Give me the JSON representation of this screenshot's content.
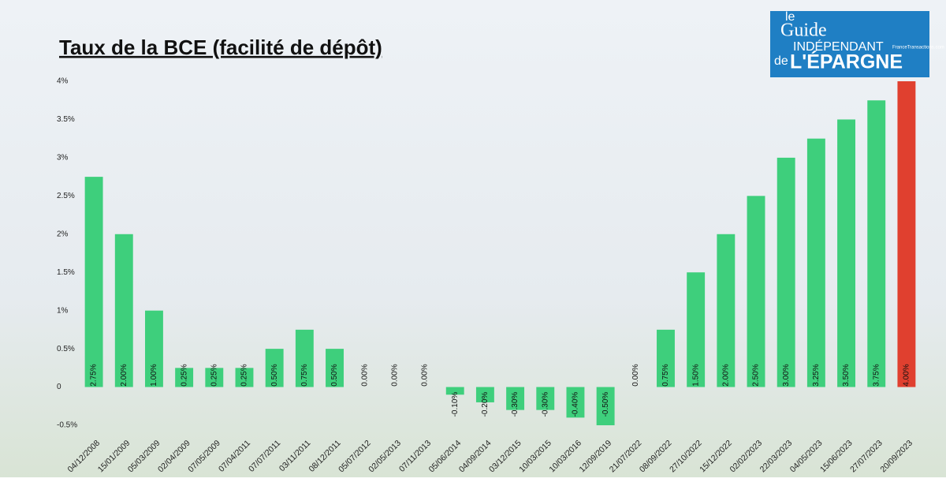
{
  "chart_data": {
    "type": "bar",
    "title": "Taux de la BCE (facilité de dépôt)",
    "categories": [
      "04/12/2008",
      "15/01/2009",
      "05/03/2009",
      "02/04/2009",
      "07/05/2009",
      "07/04/2011",
      "07/07/2011",
      "03/11/2011",
      "08/12/2011",
      "05/07/2012",
      "02/05/2013",
      "07/11/2013",
      "05/06/2014",
      "04/09/2014",
      "03/12/2015",
      "10/03/2015",
      "10/03/2016",
      "12/09/2019",
      "21/07/2022",
      "08/09/2022",
      "27/10/2022",
      "15/12/2022",
      "02/02/2023",
      "22/03/2023",
      "04/05/2023",
      "15/06/2023",
      "27/07/2023",
      "20/09/2023"
    ],
    "values": [
      2.75,
      2,
      1,
      0.25,
      0.25,
      0.25,
      0.5,
      0.75,
      0.5,
      0,
      0,
      0,
      -0.1,
      -0.2,
      -0.3,
      -0.3,
      -0.4,
      -0.5,
      0,
      0.75,
      1.5,
      2,
      2.5,
      3,
      3.25,
      3.5,
      3.75,
      4
    ],
    "value_labels": [
      "2.75%",
      "2.00%",
      "1.00%",
      "0.25%",
      "0.25%",
      "0.25%",
      "0.50%",
      "0.75%",
      "0.50%",
      "0.00%",
      "0.00%",
      "0.00%",
      "-0.10%",
      "-0.20%",
      "-0.30%",
      "-0.30%",
      "-0.40%",
      "-0.50%",
      "0.00%",
      "0.75%",
      "1.50%",
      "2.00%",
      "2.50%",
      "3.00%",
      "3.25%",
      "3.50%",
      "3.75%",
      "4.00%"
    ],
    "colors": [
      "#3ecf7c",
      "#3ecf7c",
      "#3ecf7c",
      "#3ecf7c",
      "#3ecf7c",
      "#3ecf7c",
      "#3ecf7c",
      "#3ecf7c",
      "#3ecf7c",
      "#3ecf7c",
      "#3ecf7c",
      "#3ecf7c",
      "#3ecf7c",
      "#3ecf7c",
      "#3ecf7c",
      "#3ecf7c",
      "#3ecf7c",
      "#3ecf7c",
      "#3ecf7c",
      "#3ecf7c",
      "#3ecf7c",
      "#3ecf7c",
      "#3ecf7c",
      "#3ecf7c",
      "#3ecf7c",
      "#3ecf7c",
      "#3ecf7c",
      "#e0402f"
    ],
    "ylim": [
      -0.5,
      4
    ],
    "yticks": [
      {
        "value": -0.5,
        "label": "-0.5%"
      },
      0,
      {
        "value": 0.5,
        "label": "0.5%"
      },
      {
        "value": 1,
        "label": "1%"
      },
      {
        "value": 1.5,
        "label": "1.5%"
      },
      {
        "value": 2,
        "label": "2%"
      },
      {
        "value": 2.5,
        "label": "2.5%"
      },
      {
        "value": 3,
        "label": "3%"
      },
      {
        "value": 3.5,
        "label": "3.5%"
      },
      {
        "value": 4,
        "label": "4%"
      }
    ]
  },
  "logo": {
    "line1": "le",
    "line2": "Guide",
    "line3": "INDÉPENDANT",
    "line4": "de",
    "line5": "L'ÉPARGNE",
    "site": "FranceTransactions.com"
  }
}
